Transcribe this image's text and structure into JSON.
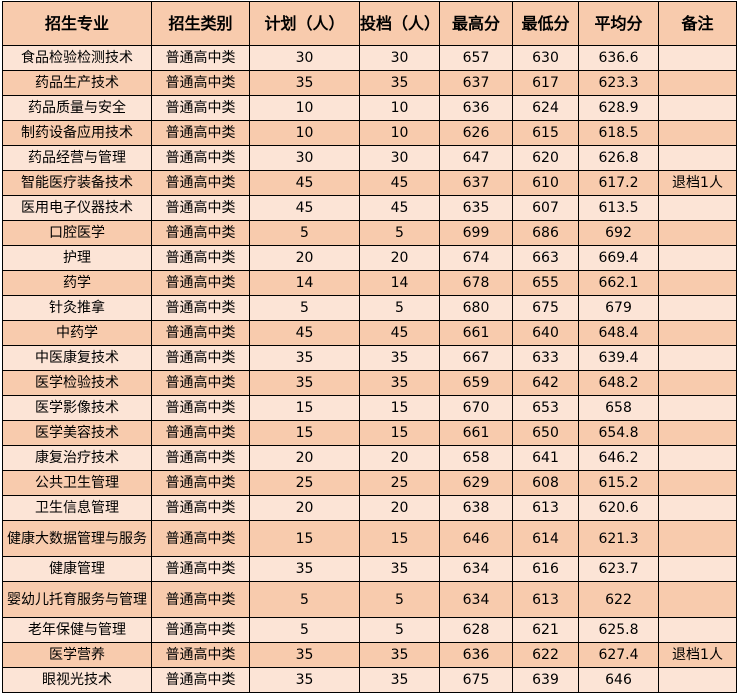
{
  "colors": {
    "header": "#F8CBAD",
    "row_light": "#FCE4D6",
    "row_dark": "#F8CBAD",
    "border": "#000000"
  },
  "headers": [
    "招生专业",
    "招生类别",
    "计划（人）",
    "投档（人）",
    "最高分",
    "最低分",
    "平均分",
    "备注"
  ],
  "rows": [
    [
      "食品检验检测技术",
      "普通高中类",
      "30",
      "30",
      "657",
      "630",
      "636.6",
      ""
    ],
    [
      "药品生产技术",
      "普通高中类",
      "35",
      "35",
      "637",
      "617",
      "623.3",
      ""
    ],
    [
      "药品质量与安全",
      "普通高中类",
      "10",
      "10",
      "636",
      "624",
      "628.9",
      ""
    ],
    [
      "制药设备应用技术",
      "普通高中类",
      "10",
      "10",
      "626",
      "615",
      "618.5",
      ""
    ],
    [
      "药品经营与管理",
      "普通高中类",
      "30",
      "30",
      "647",
      "620",
      "626.8",
      ""
    ],
    [
      "智能医疗装备技术",
      "普通高中类",
      "45",
      "45",
      "637",
      "610",
      "617.2",
      "退档1人"
    ],
    [
      "医用电子仪器技术",
      "普通高中类",
      "45",
      "45",
      "635",
      "607",
      "613.5",
      ""
    ],
    [
      "口腔医学",
      "普通高中类",
      "5",
      "5",
      "699",
      "686",
      "692",
      ""
    ],
    [
      "护理",
      "普通高中类",
      "20",
      "20",
      "674",
      "663",
      "669.4",
      ""
    ],
    [
      "药学",
      "普通高中类",
      "14",
      "14",
      "678",
      "655",
      "662.1",
      ""
    ],
    [
      "针灸推拿",
      "普通高中类",
      "5",
      "5",
      "680",
      "675",
      "679",
      ""
    ],
    [
      "中药学",
      "普通高中类",
      "45",
      "45",
      "661",
      "640",
      "648.4",
      ""
    ],
    [
      "中医康复技术",
      "普通高中类",
      "35",
      "35",
      "667",
      "633",
      "639.4",
      ""
    ],
    [
      "医学检验技术",
      "普通高中类",
      "35",
      "35",
      "659",
      "642",
      "648.2",
      ""
    ],
    [
      "医学影像技术",
      "普通高中类",
      "15",
      "15",
      "670",
      "653",
      "658",
      ""
    ],
    [
      "医学美容技术",
      "普通高中类",
      "15",
      "15",
      "661",
      "650",
      "654.8",
      ""
    ],
    [
      "康复治疗技术",
      "普通高中类",
      "20",
      "20",
      "658",
      "641",
      "646.2",
      ""
    ],
    [
      "公共卫生管理",
      "普通高中类",
      "25",
      "25",
      "629",
      "608",
      "615.2",
      ""
    ],
    [
      "卫生信息管理",
      "普通高中类",
      "20",
      "20",
      "638",
      "613",
      "620.6",
      ""
    ],
    [
      "健康大数据管理与服务",
      "普通高中类",
      "15",
      "15",
      "646",
      "614",
      "621.3",
      ""
    ],
    [
      "健康管理",
      "普通高中类",
      "35",
      "35",
      "634",
      "616",
      "623.7",
      ""
    ],
    [
      "婴幼儿托育服务与管理",
      "普通高中类",
      "5",
      "5",
      "634",
      "613",
      "622",
      ""
    ],
    [
      "老年保健与管理",
      "普通高中类",
      "5",
      "5",
      "628",
      "621",
      "625.8",
      ""
    ],
    [
      "医学营养",
      "普通高中类",
      "35",
      "35",
      "636",
      "622",
      "627.4",
      "退档1人"
    ],
    [
      "眼视光技术",
      "普通高中类",
      "35",
      "35",
      "675",
      "639",
      "646",
      ""
    ]
  ]
}
